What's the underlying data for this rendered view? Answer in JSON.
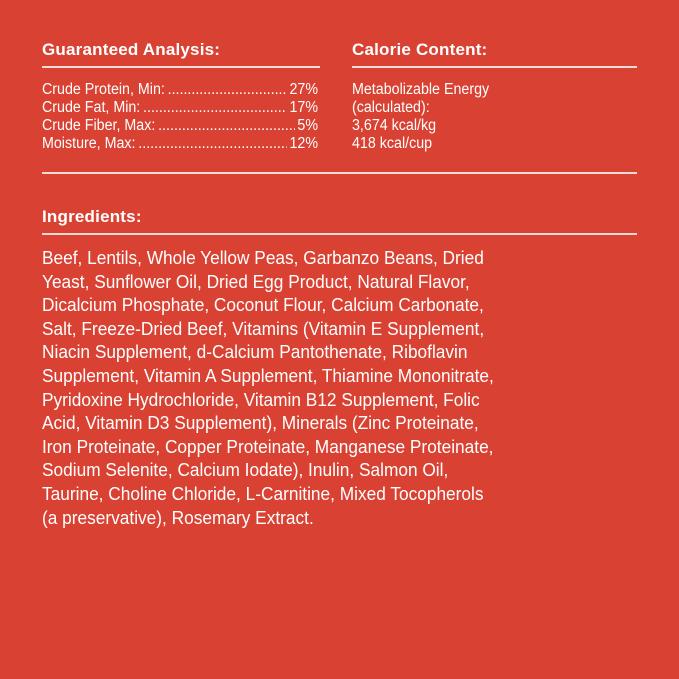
{
  "guaranteed_analysis": {
    "title": "Guaranteed Analysis:",
    "items": [
      {
        "label": "Crude Protein, Min:",
        "value": "27%"
      },
      {
        "label": "Crude Fat, Min:",
        "value": "17%"
      },
      {
        "label": "Crude Fiber, Max:",
        "value": "5%"
      },
      {
        "label": "Moisture, Max:",
        "value": "12%"
      }
    ]
  },
  "calorie_content": {
    "title": "Calorie Content:",
    "lines": [
      "Metabolizable Energy",
      "(calculated):",
      "3,674 kcal/kg",
      "418 kcal/cup"
    ]
  },
  "ingredients": {
    "title": "Ingredients:",
    "lines": [
      "Beef, Lentils, Whole Yellow Peas, Garbanzo Beans, Dried",
      "Yeast, Sunflower Oil, Dried Egg Product, Natural Flavor,",
      "Dicalcium Phosphate, Coconut Flour, Calcium Carbonate,",
      "Salt, Freeze-Dried Beef, Vitamins (Vitamin E Supplement,",
      "Niacin Supplement, d-Calcium Pantothenate, Riboflavin",
      "Supplement, Vitamin A Supplement, Thiamine Mononitrate,",
      "Pyridoxine Hydrochloride, Vitamin B12 Supplement, Folic",
      "Acid, Vitamin D3 Supplement), Minerals (Zinc Proteinate,",
      "Iron Proteinate, Copper Proteinate, Manganese Proteinate,",
      "Sodium Selenite, Calcium Iodate), Inulin, Salmon Oil,",
      "Taurine, Choline Chloride, L-Carnitine, Mixed Tocopherols",
      "(a preservative), Rosemary Extract."
    ]
  },
  "colors": {
    "background": "#d94233",
    "text": "#ffffff"
  }
}
